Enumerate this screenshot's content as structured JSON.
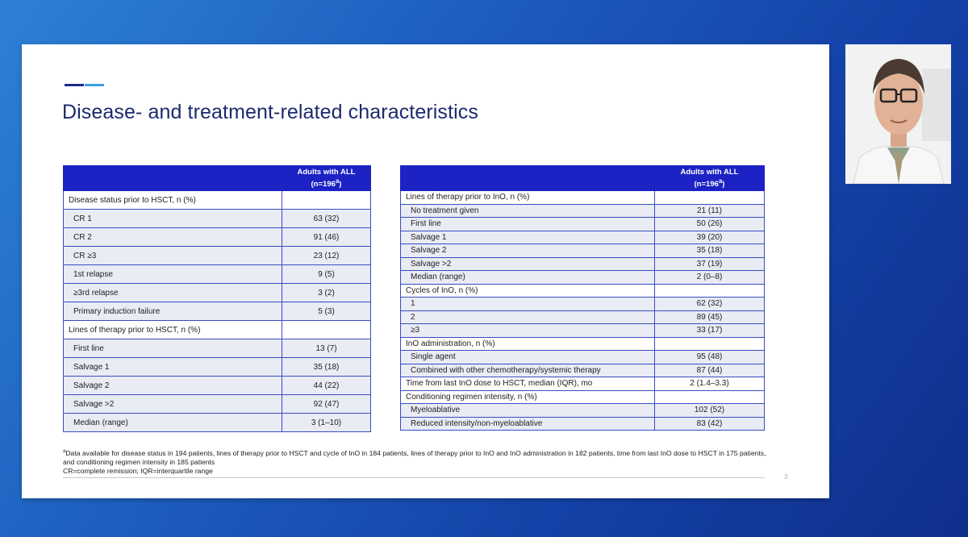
{
  "slide": {
    "title": "Disease- and treatment-related characteristics",
    "page_number": "3",
    "footnotes": {
      "line1_marker": "a",
      "line1": "Data available for disease status in 194 patients, lines of therapy prior to HSCT and cycle of InO in 184 patients, lines of therapy prior to InO and InO administration in 182 patients, time from last InO dose to HSCT in 175 patients, and conditioning regimen intensity in 185 patients",
      "line2": "CR=complete remission; IQR=interquartile range"
    }
  },
  "left_table": {
    "header_line1": "Adults with ALL",
    "header_line2": "(n=196",
    "header_sup": "a",
    "header_close": ")",
    "rows": [
      {
        "type": "section",
        "label": "Disease status prior to HSCT, n (%)",
        "value": ""
      },
      {
        "type": "item",
        "label": "CR 1",
        "value": "63 (32)"
      },
      {
        "type": "item",
        "label": "CR 2",
        "value": "91 (46)"
      },
      {
        "type": "item",
        "label": "CR ≥3",
        "value": "23 (12)"
      },
      {
        "type": "item",
        "label": "1st relapse",
        "value": "9 (5)"
      },
      {
        "type": "item",
        "label": "≥3rd relapse",
        "value": "3 (2)"
      },
      {
        "type": "item",
        "label": "Primary induction failure",
        "value": "5 (3)"
      },
      {
        "type": "section",
        "label": "Lines of therapy prior to HSCT, n (%)",
        "value": ""
      },
      {
        "type": "item",
        "label": "First line",
        "value": "13 (7)"
      },
      {
        "type": "item",
        "label": "Salvage 1",
        "value": "35 (18)"
      },
      {
        "type": "item",
        "label": "Salvage 2",
        "value": "44 (22)"
      },
      {
        "type": "item",
        "label": "Salvage >2",
        "value": "92 (47)"
      },
      {
        "type": "item",
        "label": "Median (range)",
        "value": "3 (1–10)"
      }
    ]
  },
  "right_table": {
    "header_line1": "Adults with ALL",
    "header_line2": "(n=196",
    "header_sup": "a",
    "header_close": ")",
    "rows": [
      {
        "type": "section",
        "label": "Lines of therapy prior to InO, n (%)",
        "value": ""
      },
      {
        "type": "item",
        "label": "No treatment given",
        "value": "21 (11)"
      },
      {
        "type": "item",
        "label": "First line",
        "value": "50 (26)"
      },
      {
        "type": "item",
        "label": "Salvage 1",
        "value": "39 (20)"
      },
      {
        "type": "item",
        "label": "Salvage 2",
        "value": "35 (18)"
      },
      {
        "type": "item",
        "label": "Salvage >2",
        "value": "37 (19)"
      },
      {
        "type": "item",
        "label": "Median (range)",
        "value": "2 (0–8)"
      },
      {
        "type": "section",
        "label": "Cycles of InO, n (%)",
        "value": ""
      },
      {
        "type": "item",
        "label": "1",
        "value": "62 (32)"
      },
      {
        "type": "item",
        "label": "2",
        "value": "89 (45)"
      },
      {
        "type": "item",
        "label": "≥3",
        "value": "33 (17)"
      },
      {
        "type": "section",
        "label": "InO administration, n (%)",
        "value": ""
      },
      {
        "type": "item",
        "label": "Single agent",
        "value": "95 (48)"
      },
      {
        "type": "item",
        "label": "Combined with other chemotherapy/systemic therapy",
        "value": "87 (44)"
      },
      {
        "type": "section",
        "label": "Time from last InO dose to HSCT, median (IQR), mo",
        "value": "2 (1.4–3.3)"
      },
      {
        "type": "section",
        "label": "Conditioning regimen intensity, n (%)",
        "value": ""
      },
      {
        "type": "item",
        "label": "Myeloablative",
        "value": "102 (52)"
      },
      {
        "type": "item",
        "label": "Reduced intensity/non-myeloablative",
        "value": "83 (42)"
      }
    ]
  },
  "colors": {
    "background": "#1d5fbf",
    "header_fill": "#1c22c4",
    "title_text": "#1c2a6e",
    "accent_dark": "#1a2a8c",
    "accent_light": "#3aa0e8"
  }
}
